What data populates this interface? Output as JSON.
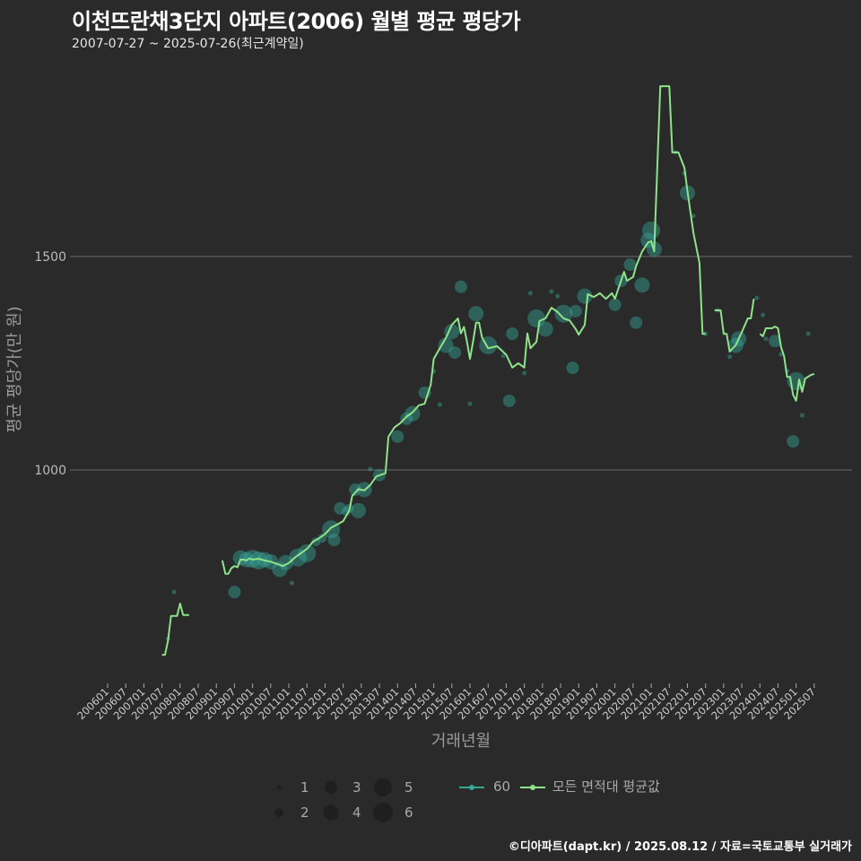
{
  "title": "이천뜨란채3단지 아파트(2006) 월별 평균 평당가",
  "subtitle": "2007-07-27 ~ 2025-07-26(최근계약일)",
  "caption": "©디아파트(dapt.kr) / 2025.08.12 / 자료=국토교통부 실거래가",
  "colors": {
    "line": "#8ee38a",
    "bubble": "#35a596",
    "grid": "#6a6a6a",
    "background": "#2a2a2b"
  },
  "chart_data": {
    "type": "line",
    "title": "이천뜨란채3단지 아파트(2006) 월별 평균 평당가",
    "xlabel": "거래년월",
    "ylabel": "평균 평당가(만 원)",
    "ylim": [
      510,
      1990
    ],
    "yticks": [
      "1000",
      "1500"
    ],
    "ytick_values": [
      1000,
      1500
    ],
    "xticks": [
      "200601",
      "200607",
      "200701",
      "200707",
      "200801",
      "200807",
      "200901",
      "200907",
      "201001",
      "201007",
      "201101",
      "201107",
      "201201",
      "201207",
      "201301",
      "201307",
      "201401",
      "201407",
      "201501",
      "201507",
      "201601",
      "201607",
      "201701",
      "201707",
      "201801",
      "201807",
      "201901",
      "201907",
      "202001",
      "202007",
      "202101",
      "202107",
      "202201",
      "202207",
      "202301",
      "202307",
      "202401",
      "202407",
      "202501",
      "202507"
    ],
    "grid": true,
    "legend": {
      "size_title": "",
      "sizes": [
        "1",
        "2",
        "3",
        "4",
        "5",
        "6"
      ],
      "series": [
        "60",
        "모든 면적대 평균값"
      ],
      "placement": "bottom"
    },
    "line_segments": [
      [
        [
          "200707",
          567
        ],
        [
          "200708",
          567
        ],
        [
          "200709",
          600
        ],
        [
          "200710",
          658
        ],
        [
          "200711",
          658
        ],
        [
          "200712",
          658
        ],
        [
          "200801",
          687
        ],
        [
          "200802",
          660
        ],
        [
          "200803",
          660
        ],
        [
          "200804",
          660
        ]
      ],
      [
        [
          "200903",
          788
        ],
        [
          "200904",
          757
        ],
        [
          "200905",
          757
        ],
        [
          "200906",
          770
        ],
        [
          "200907",
          775
        ],
        [
          "200908",
          772
        ],
        [
          "200909",
          790
        ],
        [
          "200910",
          790
        ],
        [
          "200911",
          788
        ],
        [
          "200912",
          793
        ],
        [
          "201001",
          790
        ],
        [
          "201003",
          792
        ],
        [
          "201005",
          788
        ],
        [
          "201007",
          785
        ],
        [
          "201009",
          780
        ],
        [
          "201011",
          775
        ],
        [
          "201101",
          782
        ],
        [
          "201103",
          795
        ],
        [
          "201105",
          805
        ],
        [
          "201107",
          815
        ],
        [
          "201109",
          832
        ],
        [
          "201111",
          840
        ],
        [
          "201201",
          850
        ],
        [
          "201203",
          865
        ],
        [
          "201205",
          872
        ],
        [
          "201207",
          880
        ],
        [
          "201209",
          905
        ],
        [
          "201210",
          939
        ],
        [
          "201212",
          955
        ],
        [
          "201302",
          952
        ],
        [
          "201304",
          965
        ],
        [
          "201306",
          985
        ],
        [
          "201308",
          990
        ],
        [
          "201309",
          992
        ],
        [
          "201310",
          1078
        ],
        [
          "201312",
          1100
        ],
        [
          "201402",
          1110
        ],
        [
          "201404",
          1125
        ],
        [
          "201406",
          1135
        ],
        [
          "201408",
          1151
        ],
        [
          "201410",
          1155
        ],
        [
          "201412",
          1200
        ],
        [
          "201501",
          1260
        ],
        [
          "201503",
          1285
        ],
        [
          "201505",
          1309
        ],
        [
          "201507",
          1340
        ],
        [
          "201509",
          1355
        ],
        [
          "201510",
          1320
        ],
        [
          "201511",
          1335
        ],
        [
          "201512",
          1300
        ],
        [
          "201601",
          1260
        ],
        [
          "201602",
          1300
        ],
        [
          "201603",
          1345
        ],
        [
          "201604",
          1345
        ],
        [
          "201605",
          1310
        ],
        [
          "201607",
          1285
        ],
        [
          "201610",
          1290
        ],
        [
          "201701",
          1270
        ],
        [
          "201703",
          1240
        ],
        [
          "201705",
          1250
        ],
        [
          "201707",
          1240
        ],
        [
          "201708",
          1320
        ],
        [
          "201709",
          1285
        ],
        [
          "201711",
          1300
        ],
        [
          "201712",
          1349
        ],
        [
          "201802",
          1355
        ],
        [
          "201804",
          1380
        ],
        [
          "201806",
          1370
        ],
        [
          "201808",
          1355
        ],
        [
          "201810",
          1350
        ],
        [
          "201812",
          1330
        ],
        [
          "201901",
          1317
        ],
        [
          "201903",
          1340
        ],
        [
          "201904",
          1412
        ],
        [
          "201906",
          1405
        ],
        [
          "201908",
          1414
        ],
        [
          "201910",
          1401
        ],
        [
          "201912",
          1414
        ],
        [
          "202001",
          1401
        ],
        [
          "202004",
          1464
        ],
        [
          "202005",
          1443
        ],
        [
          "202007",
          1452
        ],
        [
          "202008",
          1477
        ],
        [
          "202010",
          1512
        ],
        [
          "202012",
          1533
        ],
        [
          "202101",
          1536
        ],
        [
          "202102",
          1512
        ],
        [
          "202104",
          1899
        ],
        [
          "202107",
          1899
        ],
        [
          "202108",
          1744
        ],
        [
          "202110",
          1744
        ],
        [
          "202112",
          1708
        ],
        [
          "202201",
          1653
        ],
        [
          "202203",
          1555
        ],
        [
          "202205",
          1485
        ],
        [
          "202206",
          1319
        ],
        [
          "202207",
          1319
        ]
      ],
      [
        [
          "202210",
          1374
        ],
        [
          "202212",
          1374
        ],
        [
          "202301",
          1319
        ],
        [
          "202302",
          1319
        ],
        [
          "202303",
          1277
        ],
        [
          "202305",
          1292
        ],
        [
          "202307",
          1323
        ],
        [
          "202309",
          1355
        ],
        [
          "202310",
          1355
        ],
        [
          "202311",
          1401
        ]
      ],
      [
        [
          "202401",
          1319
        ],
        [
          "202402",
          1313
        ],
        [
          "202403",
          1332
        ],
        [
          "202405",
          1332
        ],
        [
          "202406",
          1336
        ],
        [
          "202407",
          1332
        ],
        [
          "202408",
          1288
        ],
        [
          "202409",
          1267
        ],
        [
          "202410",
          1218
        ],
        [
          "202411",
          1218
        ],
        [
          "202412",
          1176
        ],
        [
          "202501",
          1162
        ],
        [
          "202502",
          1212
        ],
        [
          "202503",
          1183
        ],
        [
          "202504",
          1214
        ],
        [
          "202506",
          1223
        ],
        [
          "202507",
          1225
        ]
      ]
    ],
    "bubbles": [
      [
        "200709",
        605,
        1
      ],
      [
        "200711",
        714,
        1
      ],
      [
        "200907",
        714,
        3
      ],
      [
        "200909",
        794,
        4
      ],
      [
        "200911",
        790,
        4
      ],
      [
        "201001",
        792,
        5
      ],
      [
        "201003",
        788,
        5
      ],
      [
        "201005",
        790,
        4
      ],
      [
        "201007",
        785,
        4
      ],
      [
        "201010",
        767,
        4
      ],
      [
        "201012",
        783,
        4
      ],
      [
        "201102",
        735,
        1
      ],
      [
        "201104",
        795,
        5
      ],
      [
        "201107",
        805,
        5
      ],
      [
        "201110",
        832,
        2
      ],
      [
        "201112",
        840,
        2
      ],
      [
        "201203",
        861,
        5
      ],
      [
        "201204",
        836,
        3
      ],
      [
        "201206",
        910,
        3
      ],
      [
        "201208",
        903,
        2
      ],
      [
        "201209",
        910,
        2
      ],
      [
        "201211",
        954,
        3
      ],
      [
        "201212",
        905,
        4
      ],
      [
        "201302",
        954,
        4
      ],
      [
        "201304",
        1002,
        1
      ],
      [
        "201307",
        988,
        3
      ],
      [
        "201401",
        1078,
        3
      ],
      [
        "201404",
        1120,
        3
      ],
      [
        "201406",
        1132,
        4
      ],
      [
        "201410",
        1181,
        3
      ],
      [
        "201501",
        1231,
        1
      ],
      [
        "201503",
        1153,
        1
      ],
      [
        "201505",
        1292,
        4
      ],
      [
        "201507",
        1324,
        4
      ],
      [
        "201508",
        1275,
        3
      ],
      [
        "201510",
        1429,
        3
      ],
      [
        "201601",
        1155,
        1
      ],
      [
        "201603",
        1366,
        4
      ],
      [
        "201607",
        1292,
        5
      ],
      [
        "201612",
        1267,
        1
      ],
      [
        "201702",
        1162,
        3
      ],
      [
        "201703",
        1319,
        3
      ],
      [
        "201707",
        1227,
        1
      ],
      [
        "201709",
        1414,
        1
      ],
      [
        "201711",
        1355,
        5
      ],
      [
        "201802",
        1330,
        4
      ],
      [
        "201804",
        1418,
        1
      ],
      [
        "201806",
        1407,
        1
      ],
      [
        "201808",
        1366,
        5
      ],
      [
        "201811",
        1239,
        3
      ],
      [
        "201812",
        1372,
        3
      ],
      [
        "201903",
        1407,
        4
      ],
      [
        "202001",
        1387,
        3
      ],
      [
        "202003",
        1443,
        3
      ],
      [
        "202006",
        1481,
        3
      ],
      [
        "202008",
        1345,
        3
      ],
      [
        "202010",
        1433,
        4
      ],
      [
        "202012",
        1538,
        4
      ],
      [
        "202101",
        1561,
        5
      ],
      [
        "202102",
        1517,
        4
      ],
      [
        "202109",
        1744,
        1
      ],
      [
        "202112",
        1695,
        1
      ],
      [
        "202201",
        1649,
        4
      ],
      [
        "202203",
        1595,
        1
      ],
      [
        "202207",
        1319,
        1
      ],
      [
        "202211",
        1374,
        1
      ],
      [
        "202303",
        1265,
        1
      ],
      [
        "202305",
        1292,
        4
      ],
      [
        "202306",
        1307,
        4
      ],
      [
        "202312",
        1403,
        1
      ],
      [
        "202402",
        1363,
        1
      ],
      [
        "202403",
        1307,
        1
      ],
      [
        "202406",
        1302,
        3
      ],
      [
        "202408",
        1271,
        1
      ],
      [
        "202410",
        1232,
        1
      ],
      [
        "202412",
        1067,
        3
      ],
      [
        "202501",
        1208,
        5
      ],
      [
        "202503",
        1128,
        1
      ],
      [
        "202505",
        1319,
        1
      ]
    ]
  }
}
